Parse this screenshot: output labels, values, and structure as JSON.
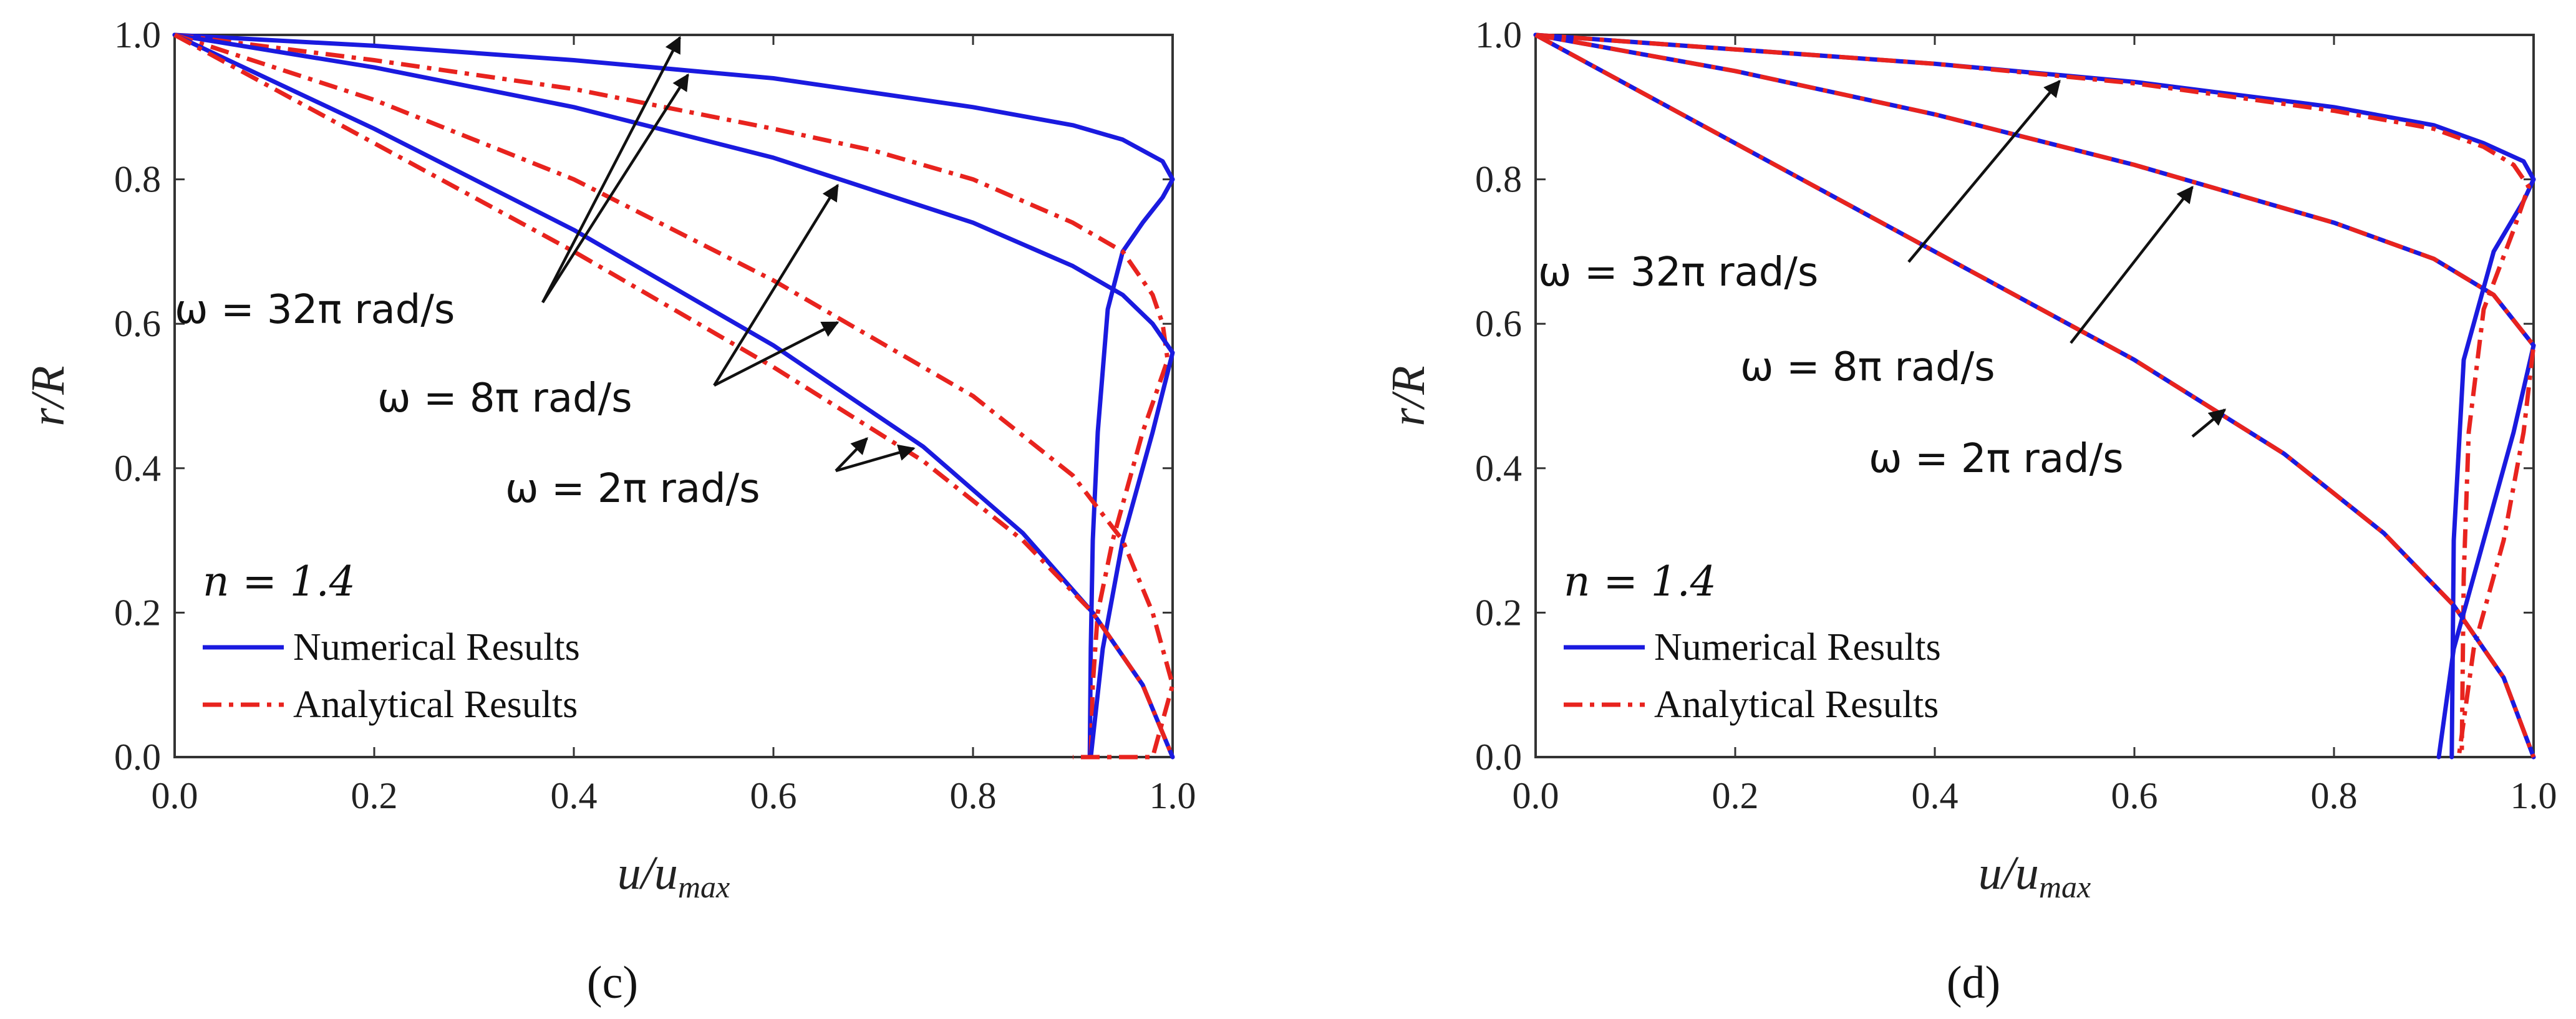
{
  "chart_data": [
    {
      "type": "line",
      "panel_label": "(c)",
      "xlabel": "u/u_max",
      "ylabel": "r/R",
      "xlim": [
        0,
        1
      ],
      "ylim": [
        0,
        1
      ],
      "xticks": [
        "0.0",
        "0.2",
        "0.4",
        "0.6",
        "0.8",
        "1.0"
      ],
      "yticks": [
        "0.0",
        "0.2",
        "0.4",
        "0.6",
        "0.8",
        "1.0"
      ],
      "legend": {
        "title": "n = 1.4",
        "placement": "bottom-left",
        "entries": [
          "Numerical Results",
          "Analytical Results"
        ]
      },
      "annotations": [
        "ω = 32π rad/s",
        "ω = 8π rad/s",
        "ω = 2π rad/s"
      ],
      "series": [
        {
          "name": "Numerical Results, ω = 32π rad/s",
          "style": "solid",
          "color": "#1a1adf",
          "x": [
            0,
            0.2,
            0.4,
            0.6,
            0.8,
            0.9,
            0.95,
            0.99,
            1.0,
            0.99,
            0.97,
            0.95,
            0.935,
            0.925,
            0.92,
            0.918,
            0.917
          ],
          "y": [
            1.0,
            0.985,
            0.965,
            0.94,
            0.9,
            0.875,
            0.855,
            0.825,
            0.8,
            0.775,
            0.74,
            0.7,
            0.62,
            0.45,
            0.3,
            0.15,
            0.0
          ]
        },
        {
          "name": "Analytical Results, ω = 32π rad/s",
          "style": "dashdot",
          "color": "#e8231e",
          "x": [
            0,
            0.2,
            0.4,
            0.6,
            0.7,
            0.8,
            0.9,
            0.95,
            0.98,
            0.99,
            0.995,
            0.97,
            0.94,
            0.925,
            0.92,
            0.918
          ],
          "y": [
            1.0,
            0.965,
            0.925,
            0.87,
            0.84,
            0.8,
            0.74,
            0.7,
            0.64,
            0.6,
            0.55,
            0.45,
            0.3,
            0.2,
            0.1,
            0.0
          ]
        },
        {
          "name": "Numerical Results, ω = 8π rad/s",
          "style": "solid",
          "color": "#1a1adf",
          "x": [
            0,
            0.2,
            0.4,
            0.6,
            0.8,
            0.9,
            0.95,
            0.98,
            1.0,
            0.98,
            0.95,
            0.93,
            0.918
          ],
          "y": [
            1.0,
            0.955,
            0.9,
            0.83,
            0.74,
            0.68,
            0.64,
            0.6,
            0.56,
            0.45,
            0.3,
            0.15,
            0.0
          ]
        },
        {
          "name": "Analytical Results, ω = 8π rad/s",
          "style": "dashdot",
          "color": "#e8231e",
          "x": [
            0,
            0.2,
            0.4,
            0.6,
            0.8,
            0.9,
            0.95,
            0.98,
            1.0,
            0.98,
            0.94,
            0.91,
            0.9
          ],
          "y": [
            1.0,
            0.91,
            0.8,
            0.66,
            0.5,
            0.39,
            0.3,
            0.2,
            0.1,
            0.0,
            0.0,
            0.0,
            0.0
          ]
        },
        {
          "name": "Numerical Results, ω = 2π rad/s",
          "style": "solid",
          "color": "#1a1adf",
          "x": [
            0,
            0.2,
            0.4,
            0.6,
            0.75,
            0.85,
            0.92,
            0.97,
            1.0
          ],
          "y": [
            1.0,
            0.87,
            0.73,
            0.57,
            0.43,
            0.31,
            0.2,
            0.1,
            0.0
          ]
        },
        {
          "name": "Analytical Results, ω = 2π rad/s",
          "style": "dashdot",
          "color": "#e8231e",
          "x": [
            0,
            0.2,
            0.4,
            0.6,
            0.75,
            0.85,
            0.92,
            0.97,
            1.0
          ],
          "y": [
            1.0,
            0.85,
            0.7,
            0.54,
            0.41,
            0.3,
            0.2,
            0.1,
            0.0
          ]
        }
      ]
    },
    {
      "type": "line",
      "panel_label": "(d)",
      "xlabel": "u/u_max",
      "ylabel": "r/R",
      "xlim": [
        0,
        1
      ],
      "ylim": [
        0,
        1
      ],
      "xticks": [
        "0.0",
        "0.2",
        "0.4",
        "0.6",
        "0.8",
        "1.0"
      ],
      "yticks": [
        "0.0",
        "0.2",
        "0.4",
        "0.6",
        "0.8",
        "1.0"
      ],
      "legend": {
        "title": "n = 1.4",
        "placement": "bottom-left",
        "entries": [
          "Numerical Results",
          "Analytical Results"
        ]
      },
      "annotations": [
        "ω = 32π rad/s",
        "ω = 8π rad/s",
        "ω = 2π rad/s"
      ],
      "series": [
        {
          "name": "Numerical Results, ω = 32π rad/s",
          "style": "solid",
          "color": "#1a1adf",
          "x": [
            0,
            0.2,
            0.4,
            0.6,
            0.8,
            0.9,
            0.95,
            0.99,
            1.0,
            0.99,
            0.96,
            0.93,
            0.92,
            0.918
          ],
          "y": [
            1.0,
            0.98,
            0.96,
            0.935,
            0.9,
            0.875,
            0.85,
            0.825,
            0.8,
            0.77,
            0.7,
            0.55,
            0.3,
            0.0
          ]
        },
        {
          "name": "Analytical Results, ω = 32π rad/s",
          "style": "dashdot",
          "color": "#e8231e",
          "x": [
            0,
            0.2,
            0.4,
            0.6,
            0.8,
            0.9,
            0.95,
            0.98,
            0.995,
            0.98,
            0.95,
            0.935,
            0.93,
            0.928
          ],
          "y": [
            1.0,
            0.98,
            0.96,
            0.933,
            0.895,
            0.87,
            0.845,
            0.82,
            0.79,
            0.73,
            0.62,
            0.45,
            0.25,
            0.0
          ]
        },
        {
          "name": "Numerical Results, ω = 8π rad/s",
          "style": "solid",
          "color": "#1a1adf",
          "x": [
            0,
            0.2,
            0.4,
            0.6,
            0.8,
            0.9,
            0.96,
            1.0,
            0.98,
            0.95,
            0.92,
            0.905
          ],
          "y": [
            1.0,
            0.95,
            0.89,
            0.82,
            0.74,
            0.69,
            0.64,
            0.57,
            0.45,
            0.3,
            0.15,
            0.0
          ]
        },
        {
          "name": "Analytical Results, ω = 8π rad/s",
          "style": "dashdot",
          "color": "#e8231e",
          "x": [
            0,
            0.2,
            0.4,
            0.6,
            0.8,
            0.9,
            0.96,
            1.0,
            0.99,
            0.97,
            0.94,
            0.925
          ],
          "y": [
            1.0,
            0.95,
            0.89,
            0.82,
            0.74,
            0.69,
            0.64,
            0.57,
            0.45,
            0.3,
            0.15,
            0.0
          ]
        },
        {
          "name": "Numerical Results, ω = 2π rad/s",
          "style": "solid",
          "color": "#1a1adf",
          "x": [
            0,
            0.2,
            0.4,
            0.6,
            0.75,
            0.85,
            0.92,
            0.97,
            1.0
          ],
          "y": [
            1.0,
            0.85,
            0.7,
            0.55,
            0.42,
            0.31,
            0.21,
            0.11,
            0.0
          ]
        },
        {
          "name": "Analytical Results, ω = 2π rad/s",
          "style": "dashdot",
          "color": "#e8231e",
          "x": [
            0,
            0.2,
            0.4,
            0.6,
            0.75,
            0.85,
            0.92,
            0.97,
            1.0
          ],
          "y": [
            1.0,
            0.85,
            0.7,
            0.55,
            0.42,
            0.31,
            0.21,
            0.11,
            0.0
          ]
        }
      ]
    }
  ]
}
